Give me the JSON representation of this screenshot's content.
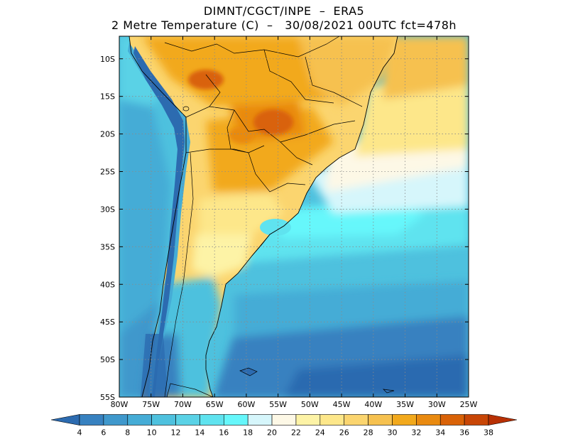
{
  "title_line1": "DIMNT/CGCT/INPE  –  ERA5",
  "title_line2": "2 Metre Temperature (C)  –   30/08/2021 00UTC fct=478h",
  "map": {
    "lat_labels": [
      "10S",
      "15S",
      "20S",
      "25S",
      "30S",
      "35S",
      "40S",
      "45S",
      "50S",
      "55S"
    ],
    "lon_labels": [
      "80W",
      "75W",
      "70W",
      "65W",
      "60W",
      "55W",
      "50W",
      "45W",
      "40W",
      "35W",
      "30W",
      "25W"
    ],
    "lat_values": [
      -10,
      -15,
      -20,
      -25,
      -30,
      -35,
      -40,
      -45,
      -50,
      -55
    ],
    "lon_values": [
      -80,
      -75,
      -70,
      -65,
      -60,
      -55,
      -50,
      -45,
      -40,
      -35,
      -30,
      -25
    ],
    "lat_range": [
      -55,
      -7
    ],
    "lon_range": [
      -80,
      -25
    ],
    "grid": "dotted"
  },
  "colorbar": {
    "labels": [
      "4",
      "6",
      "8",
      "10",
      "12",
      "14",
      "16",
      "18",
      "20",
      "22",
      "24",
      "26",
      "28",
      "30",
      "32",
      "34",
      "36",
      "38"
    ],
    "colors": [
      "#2c6bb0",
      "#3781c0",
      "#3f98cc",
      "#45acd6",
      "#4ec1de",
      "#5ad2e6",
      "#5fe3ef",
      "#66f7fb",
      "#d6f6fb",
      "#fdf8e6",
      "#fdf3a6",
      "#fde78a",
      "#fbd56f",
      "#f6c14f",
      "#f2a91c",
      "#e98a10",
      "#d96207",
      "#c84606",
      "#b83004"
    ]
  }
}
